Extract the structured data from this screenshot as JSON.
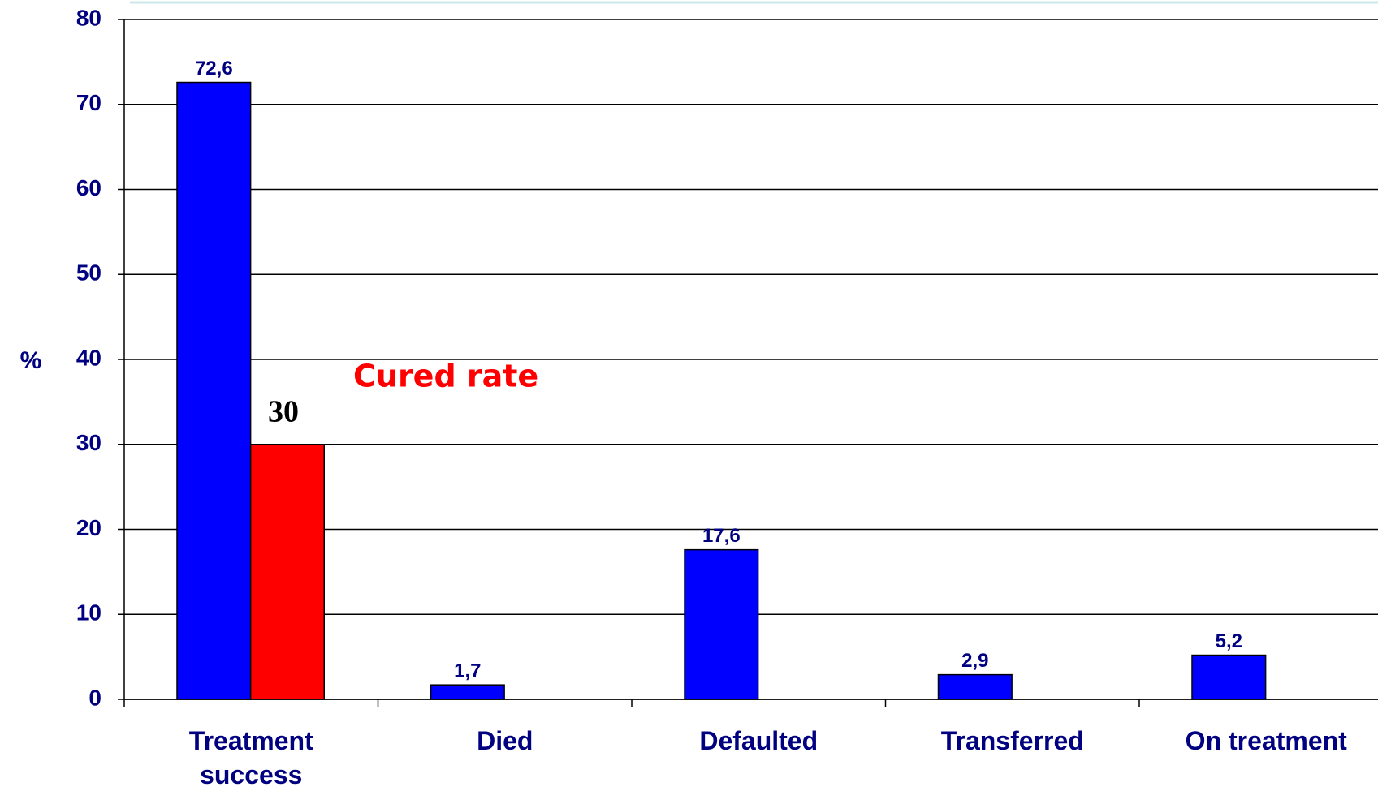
{
  "chart_data": {
    "type": "bar",
    "y_label": "%",
    "categories": [
      "Treatment success",
      "Died",
      "Defaulted",
      "Transferred",
      "On treatment"
    ],
    "series": [
      {
        "color": "#0000ff",
        "values": [
          72.6,
          1.7,
          17.6,
          2.9,
          5.2
        ],
        "value_labels": [
          "72,6",
          "1,7",
          "17,6",
          "2,9",
          "5,2"
        ]
      },
      {
        "color": "#ff0000",
        "values": [
          30,
          null,
          null,
          null,
          null
        ]
      }
    ],
    "annotations": [
      "Cured rate"
    ],
    "ylim": [
      0,
      80
    ],
    "yticks": [
      0,
      10,
      20,
      30,
      40,
      50,
      60,
      70,
      80
    ],
    "grid": true
  }
}
